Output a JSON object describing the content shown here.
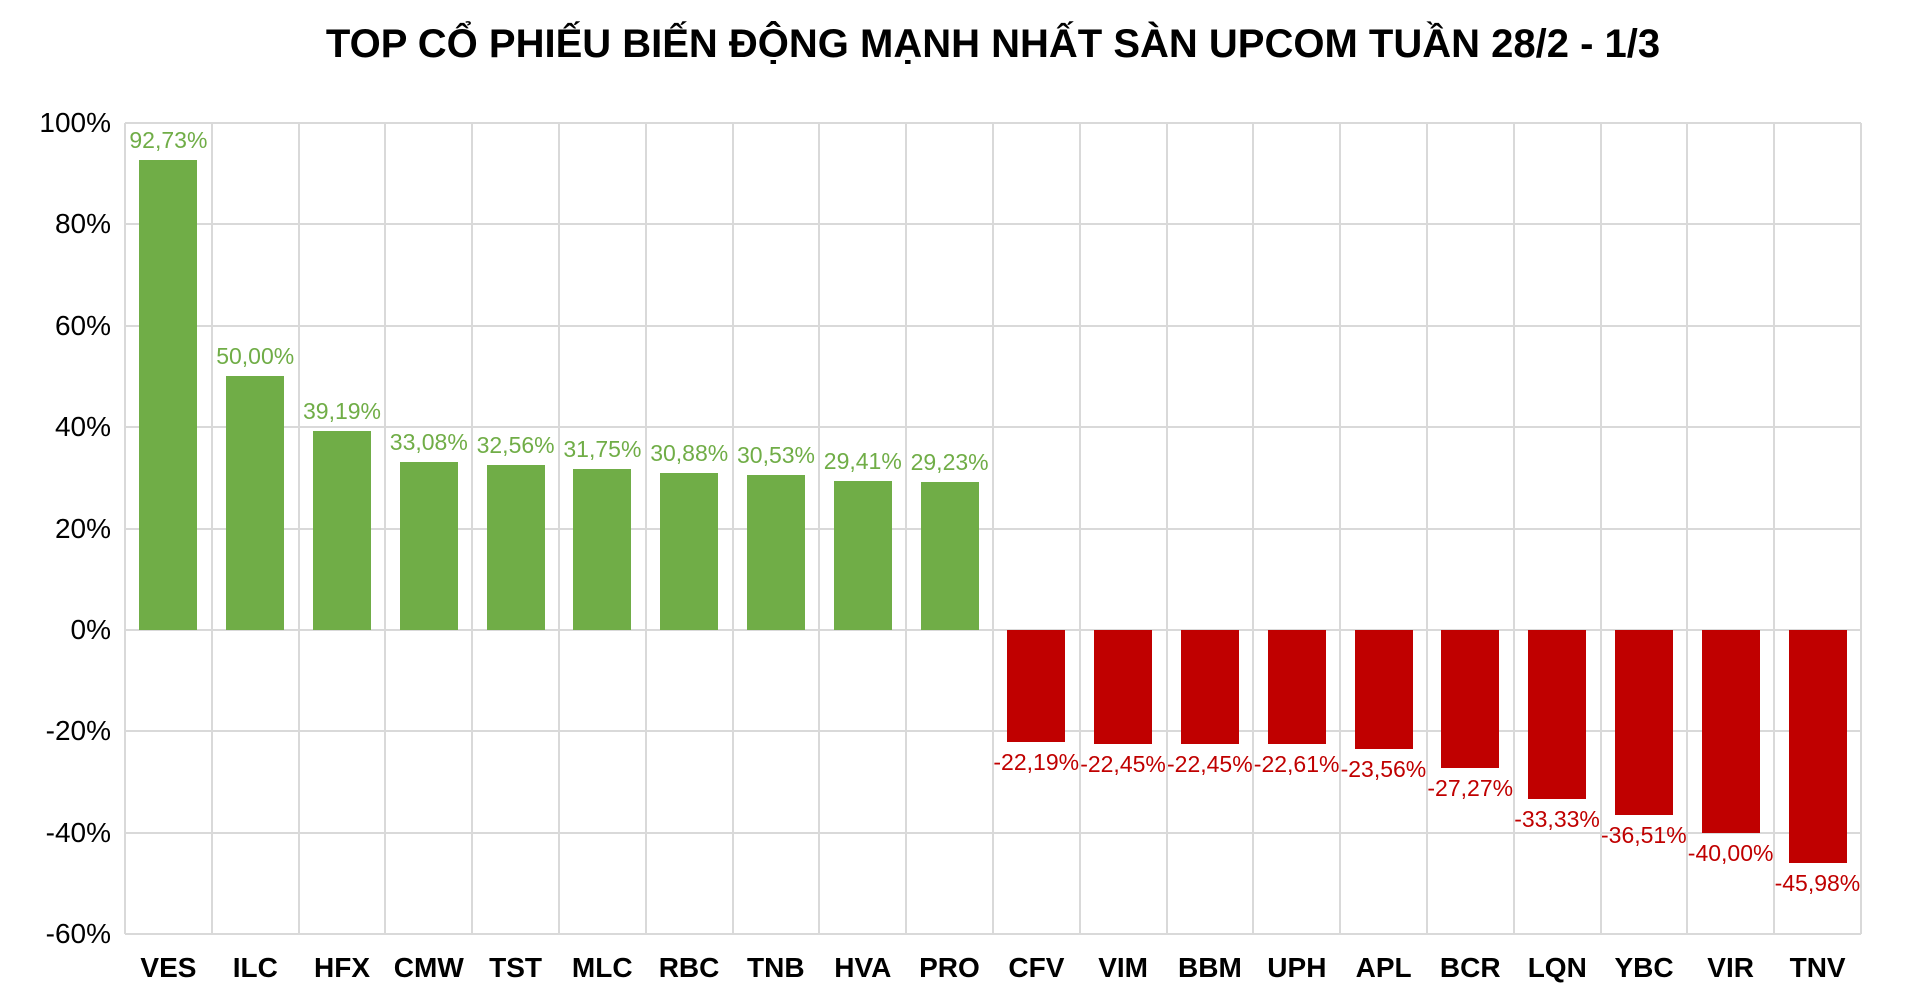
{
  "title": "TOP CỔ PHIẾU BIẾN ĐỘNG MẠNH NHẤT SÀN UPCOM TUẦN 28/2 - 1/3",
  "colors": {
    "gain": "#70ad47",
    "loss": "#c00000",
    "gridline": "#d9d9d9",
    "text": "#000000",
    "background": "#ffffff"
  },
  "chart_data": {
    "type": "bar",
    "title": "TOP CỔ PHIẾU BIẾN ĐỘNG MẠNH NHẤT SÀN UPCOM TUẦN 28/2 - 1/3",
    "categories": [
      "VES",
      "ILC",
      "HFX",
      "CMW",
      "TST",
      "MLC",
      "RBC",
      "TNB",
      "HVA",
      "PRO",
      "CFV",
      "VIM",
      "BBM",
      "UPH",
      "APL",
      "BCR",
      "LQN",
      "YBC",
      "VIR",
      "TNV"
    ],
    "values": [
      92.73,
      50.0,
      39.19,
      33.08,
      32.56,
      31.75,
      30.88,
      30.53,
      29.41,
      29.23,
      -22.19,
      -22.45,
      -22.45,
      -22.61,
      -23.56,
      -27.27,
      -33.33,
      -36.51,
      -40.0,
      -45.98
    ],
    "value_labels": [
      "92,73%",
      "50,00%",
      "39,19%",
      "33,08%",
      "32,56%",
      "31,75%",
      "30,88%",
      "30,53%",
      "29,41%",
      "29,23%",
      "-22,19%",
      "-22,45%",
      "-22,45%",
      "-22,61%",
      "-23,56%",
      "-27,27%",
      "-33,33%",
      "-36,51%",
      "-40,00%",
      "-45,98%"
    ],
    "xlabel": "",
    "ylabel": "",
    "ylim": [
      -60,
      100
    ],
    "ytick_interval": 20,
    "ytick_labels": [
      "100%",
      "80%",
      "60%",
      "40%",
      "20%",
      "0%",
      "-20%",
      "-40%",
      "-60%"
    ],
    "grid": "both",
    "legend": "none"
  }
}
